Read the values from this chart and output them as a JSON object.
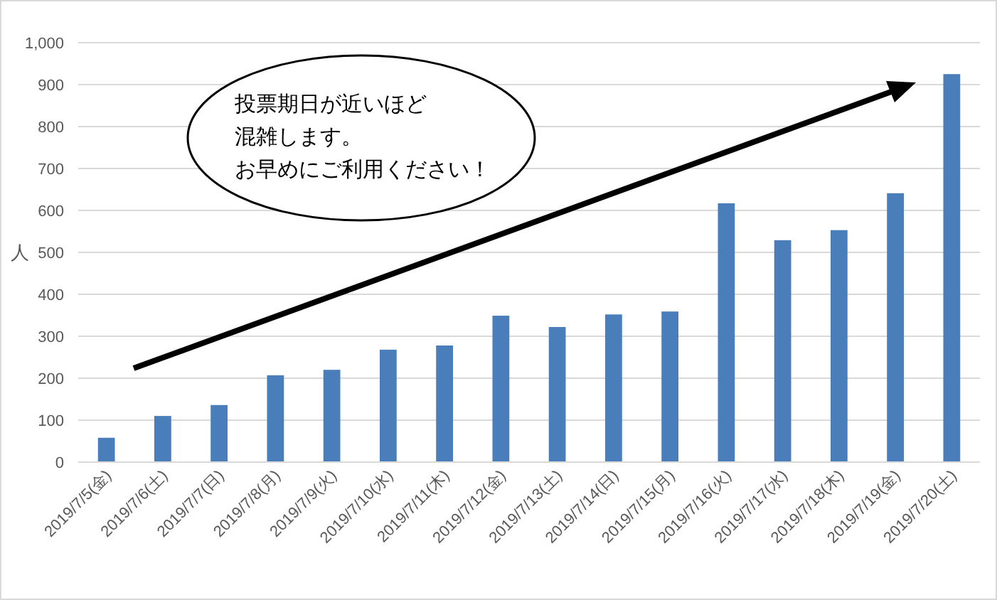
{
  "chart_data": {
    "type": "bar",
    "ylabel": "人",
    "categories": [
      "2019/7/5(金)",
      "2019/7/6(土)",
      "2019/7/7(日)",
      "2019/7/8(月)",
      "2019/7/9(火)",
      "2019/7/10(水)",
      "2019/7/11(木)",
      "2019/7/12(金)",
      "2019/7/13(土)",
      "2019/7/14(日)",
      "2019/7/15(月)",
      "2019/7/16(火)",
      "2019/7/17(水)",
      "2019/7/18(木)",
      "2019/7/19(金)",
      "2019/7/20(土)"
    ],
    "values": [
      58,
      110,
      136,
      207,
      220,
      268,
      278,
      349,
      322,
      352,
      359,
      617,
      529,
      553,
      641,
      925
    ],
    "color": "#4a7ebb",
    "ylim": [
      0,
      1000
    ],
    "yticks": [
      0,
      100,
      200,
      300,
      400,
      500,
      600,
      700,
      800,
      900,
      {
        "value": 1000,
        "label": "1,000"
      }
    ],
    "grid": "y",
    "annotations": [
      "投票期日が近いほど",
      "混雑します。",
      "お早めにご利用ください！"
    ]
  }
}
